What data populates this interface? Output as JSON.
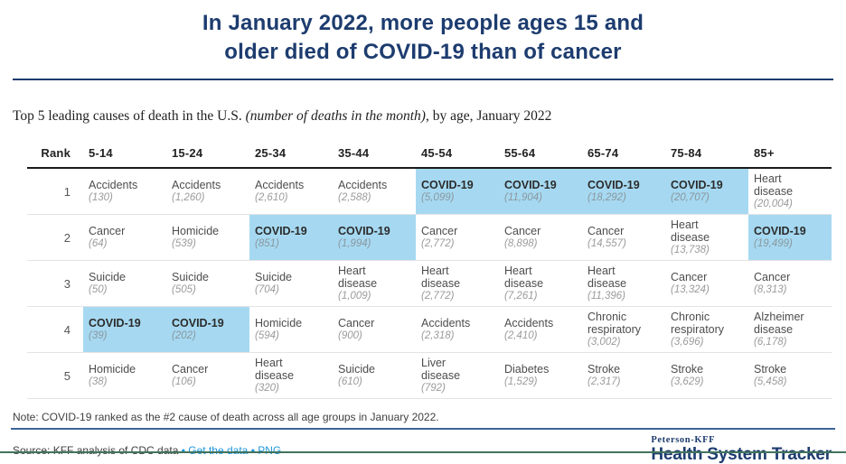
{
  "header": {
    "title_line1": "In January 2022, more people ages 15 and",
    "title_line2": "older died of COVID-19 than of cancer"
  },
  "subtitle": {
    "prefix": "Top 5 leading causes of death in the U.S. ",
    "italic": "(number of deaths in the month)",
    "suffix": ", by age, January 2022"
  },
  "table": {
    "rank_header": "Rank",
    "highlight_cause": "COVID-19"
  },
  "note": "Note: COVID-19 ranked as the #2 cause of death across all age groups in January 2022.",
  "source": {
    "text": "Source: KFF analysis of CDC data",
    "separator": "•",
    "links": [
      {
        "label": "Get the data"
      },
      {
        "label": "PNG"
      }
    ]
  },
  "logo": {
    "line1": "Peterson-KFF",
    "line2": "Health System Tracker"
  },
  "colors": {
    "navy": "#1d3c6f",
    "highlight": "#a6d9f1",
    "link": "#1e96dc",
    "footer_rule": "#3c6398",
    "bottom_border": "#43735d"
  },
  "chart_data": {
    "type": "table",
    "title": "In January 2022, more people ages 15 and older died of COVID-19 than of cancer",
    "subtitle": "Top 5 leading causes of death in the U.S. (number of deaths in the month), by age, January 2022",
    "columns": [
      "Rank",
      "5-14",
      "15-24",
      "25-34",
      "35-44",
      "45-54",
      "55-64",
      "65-74",
      "75-84",
      "85+"
    ],
    "highlight_rule": "All COVID-19 cells are shaded light blue",
    "rows": [
      {
        "rank": 1,
        "cells": [
          {
            "cause": "Accidents",
            "deaths": 130
          },
          {
            "cause": "Accidents",
            "deaths": 1260
          },
          {
            "cause": "Accidents",
            "deaths": 2610
          },
          {
            "cause": "Accidents",
            "deaths": 2588
          },
          {
            "cause": "COVID-19",
            "deaths": 5099
          },
          {
            "cause": "COVID-19",
            "deaths": 11904
          },
          {
            "cause": "COVID-19",
            "deaths": 18292
          },
          {
            "cause": "COVID-19",
            "deaths": 20707
          },
          {
            "cause": "Heart disease",
            "deaths": 20004
          }
        ]
      },
      {
        "rank": 2,
        "cells": [
          {
            "cause": "Cancer",
            "deaths": 64
          },
          {
            "cause": "Homicide",
            "deaths": 539
          },
          {
            "cause": "COVID-19",
            "deaths": 851
          },
          {
            "cause": "COVID-19",
            "deaths": 1994
          },
          {
            "cause": "Cancer",
            "deaths": 2772
          },
          {
            "cause": "Cancer",
            "deaths": 8898
          },
          {
            "cause": "Cancer",
            "deaths": 14557
          },
          {
            "cause": "Heart disease",
            "deaths": 13738
          },
          {
            "cause": "COVID-19",
            "deaths": 19499
          }
        ]
      },
      {
        "rank": 3,
        "cells": [
          {
            "cause": "Suicide",
            "deaths": 50
          },
          {
            "cause": "Suicide",
            "deaths": 505
          },
          {
            "cause": "Suicide",
            "deaths": 704
          },
          {
            "cause": "Heart disease",
            "deaths": 1009
          },
          {
            "cause": "Heart disease",
            "deaths": 2772
          },
          {
            "cause": "Heart disease",
            "deaths": 7261
          },
          {
            "cause": "Heart disease",
            "deaths": 11396
          },
          {
            "cause": "Cancer",
            "deaths": 13324
          },
          {
            "cause": "Cancer",
            "deaths": 8313
          }
        ]
      },
      {
        "rank": 4,
        "cells": [
          {
            "cause": "COVID-19",
            "deaths": 39
          },
          {
            "cause": "COVID-19",
            "deaths": 202
          },
          {
            "cause": "Homicide",
            "deaths": 594
          },
          {
            "cause": "Cancer",
            "deaths": 900
          },
          {
            "cause": "Accidents",
            "deaths": 2318
          },
          {
            "cause": "Accidents",
            "deaths": 2410
          },
          {
            "cause": "Chronic respiratory",
            "deaths": 3002
          },
          {
            "cause": "Chronic respiratory",
            "deaths": 3696
          },
          {
            "cause": "Alzheimer disease",
            "deaths": 6178
          }
        ]
      },
      {
        "rank": 5,
        "cells": [
          {
            "cause": "Homicide",
            "deaths": 38
          },
          {
            "cause": "Cancer",
            "deaths": 106
          },
          {
            "cause": "Heart disease",
            "deaths": 320
          },
          {
            "cause": "Suicide",
            "deaths": 610
          },
          {
            "cause": "Liver disease",
            "deaths": 792
          },
          {
            "cause": "Diabetes",
            "deaths": 1529
          },
          {
            "cause": "Stroke",
            "deaths": 2317
          },
          {
            "cause": "Stroke",
            "deaths": 3629
          },
          {
            "cause": "Stroke",
            "deaths": 5458
          }
        ]
      }
    ]
  }
}
